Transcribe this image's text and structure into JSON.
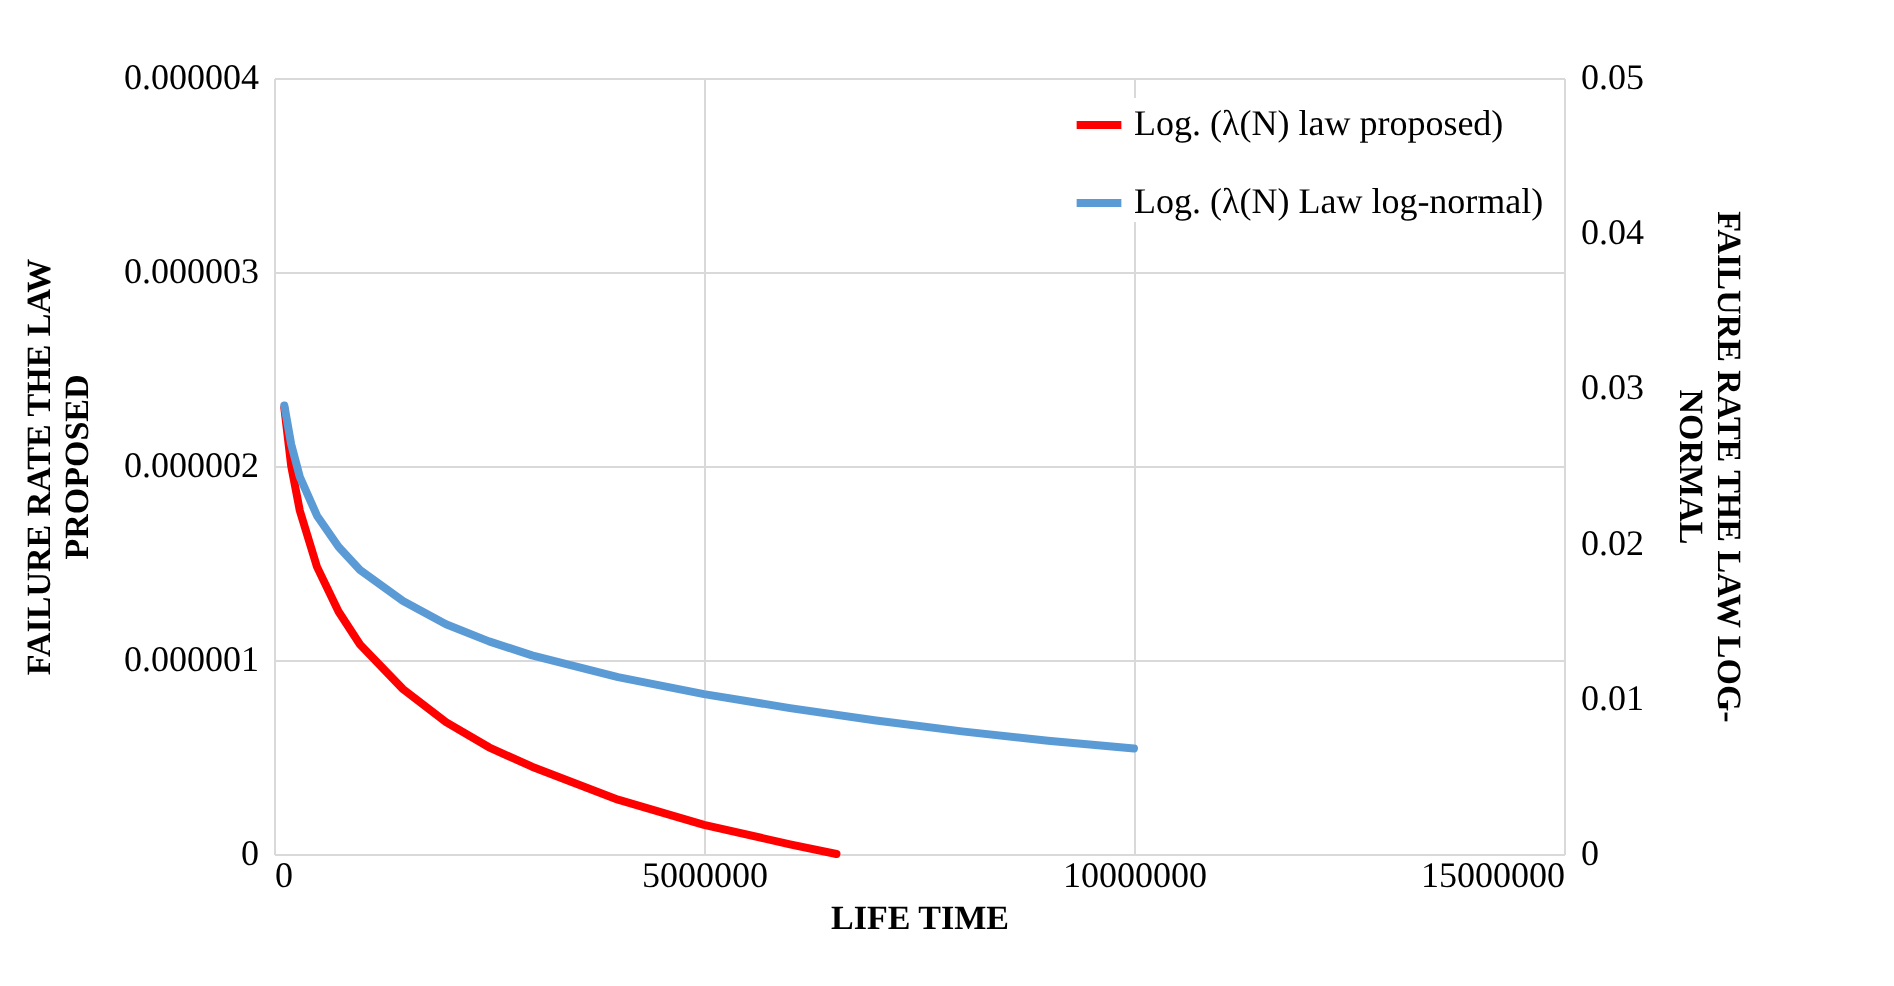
{
  "chart_data": {
    "type": "line",
    "xlabel": "LIFE TIME",
    "ylabel": "FAILURE RATE THE LAW\nPROPOSED",
    "y2label": "FAILURE RATE THE LAW LOG-\nNORMAL",
    "xlim": [
      0,
      15000000
    ],
    "xticks": [
      0,
      5000000,
      10000000,
      15000000
    ],
    "ylim": [
      0,
      4e-06
    ],
    "yticks": [
      0,
      {
        "value": 1e-06,
        "label": "0.000001"
      },
      {
        "value": 2e-06,
        "label": "0.000002"
      },
      {
        "value": 3e-06,
        "label": "0.000003"
      },
      {
        "value": 4e-06,
        "label": "0.000004"
      }
    ],
    "y2lim": [
      0,
      0.05
    ],
    "y2ticks": [
      0,
      0.01,
      0.02,
      0.03,
      0.04,
      0.05
    ],
    "grid": true,
    "legend": "top right",
    "marker": "none",
    "line_style": "solid",
    "series": [
      {
        "name": "Log. (λ(N) law proposed)",
        "color": "#ff0000",
        "x": [
          120000,
          200000,
          300000,
          500000,
          750000,
          1000000,
          1500000,
          2000000,
          2500000,
          3000000,
          4000000,
          5000000,
          6000000,
          6540000
        ],
        "values": [
          2.3e-06,
          2e-06,
          1.77e-06,
          1.48e-06,
          1.25e-06,
          1.08e-06,
          8.5e-07,
          6.8e-07,
          5.5e-07,
          4.5e-07,
          2.8e-07,
          1.5e-07,
          5e-08,
          0
        ]
      },
      {
        "name": "Log. (λ(N) Law log-normal)",
        "color": "#5b9bd5",
        "axis": "y2",
        "x": [
          120000,
          200000,
          300000,
          500000,
          750000,
          1000000,
          1500000,
          2000000,
          2500000,
          3000000,
          4000000,
          5000000,
          6000000,
          7000000,
          8000000,
          9000000,
          10000000
        ],
        "values": [
          0.0289,
          0.0264,
          0.0243,
          0.0218,
          0.0198,
          0.0183,
          0.0163,
          0.0148,
          0.0137,
          0.0128,
          0.0114,
          0.0103,
          0.0094,
          0.0086,
          0.0079,
          0.0073,
          0.0068
        ]
      }
    ]
  }
}
